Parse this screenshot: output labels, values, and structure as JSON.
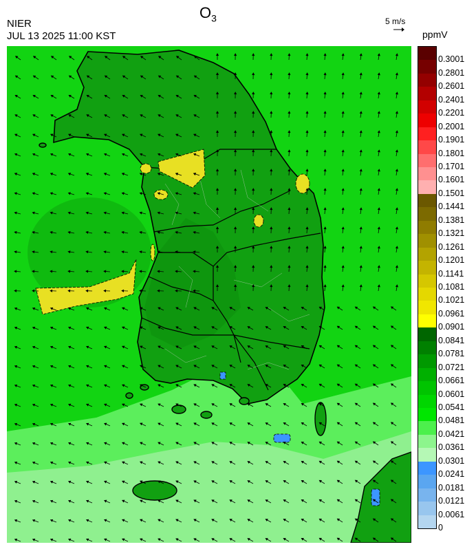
{
  "header": {
    "title": "O",
    "title_sub": "3",
    "agency": "NIER",
    "datetime": "JUL 13 2025 11:00 KST",
    "wind_scale_label": "5 m/s",
    "unit": "ppmV"
  },
  "legend": {
    "ticks": [
      "0.3001",
      "0.2801",
      "0.2601",
      "0.2401",
      "0.2201",
      "0.2001",
      "0.1901",
      "0.1801",
      "0.1701",
      "0.1601",
      "0.1501",
      "0.1441",
      "0.1381",
      "0.1321",
      "0.1261",
      "0.1201",
      "0.1141",
      "0.1081",
      "0.1021",
      "0.0961",
      "0.0901",
      "0.0841",
      "0.0781",
      "0.0721",
      "0.0661",
      "0.0601",
      "0.0541",
      "0.0481",
      "0.0421",
      "0.0361",
      "0.0301",
      "0.0241",
      "0.0181",
      "0.0121",
      "0.0061",
      "0"
    ],
    "colors": [
      "#5a0000",
      "#760000",
      "#940000",
      "#b30000",
      "#d20000",
      "#ee0000",
      "#ff2020",
      "#ff4848",
      "#ff6e6e",
      "#ff9090",
      "#ffb0b0",
      "#6b5800",
      "#7c6a00",
      "#8f7c00",
      "#a09000",
      "#b3a300",
      "#c4b400",
      "#d5c700",
      "#e4d800",
      "#f0e600",
      "#ffff00",
      "#006600",
      "#008000",
      "#009900",
      "#00b000",
      "#00c400",
      "#00d600",
      "#00e600",
      "#4cf04c",
      "#8df58d",
      "#b5f8b5",
      "#3c96ff",
      "#5aa6f0",
      "#78b4ee",
      "#98c6ee",
      "#b4d6f0"
    ]
  },
  "map": {
    "colors": {
      "land": "#11a011",
      "land_dark": "#0b8a0b",
      "sea": "#12d412",
      "sea_light": "#5cee5c",
      "sea_pale": "#8ff08f",
      "high_o3": "#e8e023",
      "low_o3": "#3c96ff",
      "coast": "#000000"
    }
  }
}
